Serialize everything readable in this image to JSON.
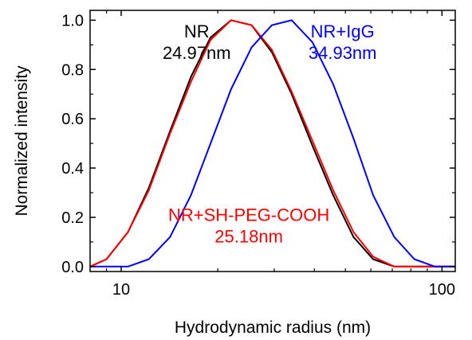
{
  "chart_data": {
    "type": "line",
    "title": "",
    "xlabel": "Hydrodynamic radius (nm)",
    "ylabel": "Normalized intensity",
    "xscale": "log",
    "xlim": [
      8,
      110
    ],
    "ylim": [
      -0.02,
      1.04
    ],
    "x_ticks": [
      10,
      100
    ],
    "x_tick_labels": [
      "10",
      "100"
    ],
    "y_ticks": [
      0.0,
      0.2,
      0.4,
      0.6,
      0.8,
      1.0
    ],
    "y_tick_labels": [
      "0.0",
      "0.2",
      "0.4",
      "0.6",
      "0.8",
      "1.0"
    ],
    "grid": false,
    "legend": "none",
    "series": [
      {
        "color": "#000000",
        "x": [
          7.9,
          8.0,
          9.0,
          10.5,
          12.2,
          14.2,
          16.5,
          19.0,
          22.0,
          25.5,
          29.5,
          34.0,
          39.5,
          45.8,
          53.0,
          61.0,
          71.0,
          82.0,
          95.0,
          110.0
        ],
        "y": [
          0.0,
          0.0,
          0.03,
          0.14,
          0.32,
          0.55,
          0.77,
          0.93,
          1.0,
          0.98,
          0.87,
          0.7,
          0.49,
          0.29,
          0.12,
          0.03,
          0.0,
          0.0,
          0.0,
          0.0
        ]
      },
      {
        "color": "#ff0000",
        "x": [
          7.9,
          8.0,
          9.0,
          10.5,
          12.2,
          14.2,
          16.5,
          19.0,
          22.0,
          25.5,
          29.5,
          34.0,
          39.5,
          45.8,
          53.0,
          61.0,
          71.0,
          82.0,
          95.0,
          110.0
        ],
        "y": [
          0.0,
          0.0,
          0.03,
          0.14,
          0.31,
          0.54,
          0.75,
          0.92,
          1.0,
          0.98,
          0.88,
          0.71,
          0.51,
          0.31,
          0.14,
          0.04,
          0.0,
          0.0,
          0.0,
          0.0
        ]
      },
      {
        "color": "#0000ff",
        "x": [
          7.9,
          8.0,
          9.0,
          10.5,
          12.2,
          14.2,
          16.5,
          19.0,
          22.0,
          25.5,
          29.5,
          34.0,
          39.5,
          45.8,
          53.0,
          61.0,
          71.0,
          82.0,
          95.0,
          110.0
        ],
        "y": [
          0.0,
          0.0,
          0.0,
          0.0,
          0.03,
          0.12,
          0.29,
          0.5,
          0.72,
          0.89,
          0.98,
          1.0,
          0.91,
          0.74,
          0.52,
          0.29,
          0.12,
          0.03,
          0.0,
          0.0
        ]
      }
    ],
    "annotations": [
      {
        "lines": [
          "NR",
          "24.97nm"
        ],
        "color": "#000000",
        "x": 17.2,
        "y_top": 0.93,
        "anchor": "middle"
      },
      {
        "lines": [
          "NR+IgG",
          "34.93nm"
        ],
        "color": "#0000ff",
        "x": 49.0,
        "y_top": 0.93,
        "anchor": "middle"
      },
      {
        "lines": [
          "NR+SH-PEG-COOH",
          "25.18nm"
        ],
        "color": "#ff0000",
        "x": 25.0,
        "y_top": 0.185,
        "anchor": "middle"
      }
    ]
  }
}
